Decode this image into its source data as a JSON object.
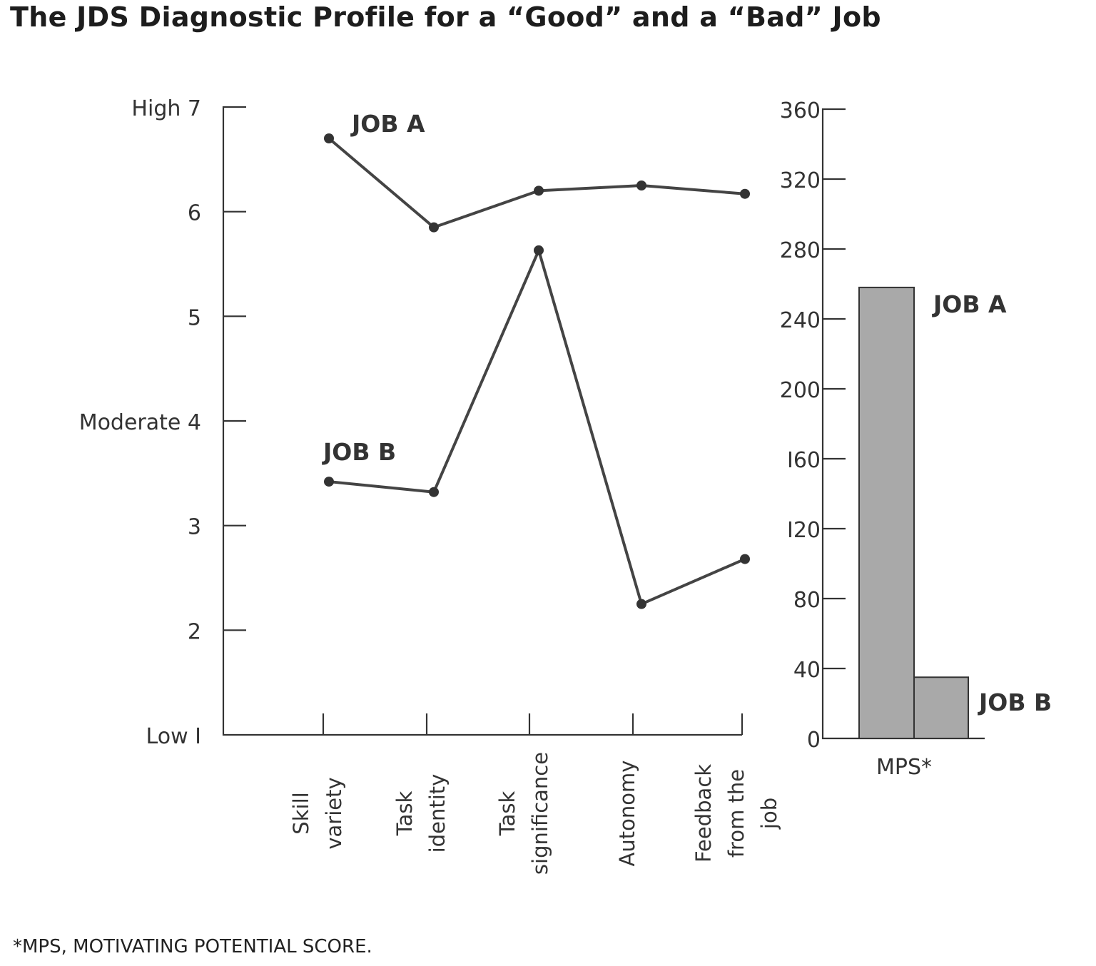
{
  "title": "The JDS Diagnostic Profile for a “Good” and a “Bad” Job",
  "footnote": "*MPS, MOTIVATING POTENTIAL SCORE.",
  "chart_data": [
    {
      "type": "line",
      "categories": [
        [
          "Skill",
          "variety"
        ],
        [
          "Task",
          "identity"
        ],
        [
          "Task",
          "significance"
        ],
        [
          "Autonomy"
        ],
        [
          "Feedback",
          "from the",
          "job"
        ]
      ],
      "ylim": [
        1,
        7
      ],
      "yticks": [
        {
          "value": 7,
          "label": "High  7"
        },
        {
          "value": 6,
          "label": "6"
        },
        {
          "value": 5,
          "label": "5"
        },
        {
          "value": 4,
          "label": "Moderate  4"
        },
        {
          "value": 3,
          "label": "3"
        },
        {
          "value": 2,
          "label": "2"
        },
        {
          "value": 1,
          "label": "Low  I"
        }
      ],
      "series": [
        {
          "name": "JOB A",
          "values": [
            6.7,
            5.85,
            6.2,
            6.25,
            6.17
          ]
        },
        {
          "name": "JOB B",
          "values": [
            3.42,
            3.32,
            5.63,
            2.25,
            2.68
          ]
        }
      ],
      "line_color": "#444444"
    },
    {
      "type": "bar",
      "categories": [
        "MPS*"
      ],
      "ylim": [
        0,
        360
      ],
      "yticks": [
        0,
        40,
        80,
        120,
        160,
        200,
        240,
        280,
        320,
        360
      ],
      "series": [
        {
          "name": "JOB A",
          "values": [
            258
          ]
        },
        {
          "name": "JOB B",
          "values": [
            35
          ]
        }
      ],
      "bar_color": "#a9a9a9"
    }
  ]
}
